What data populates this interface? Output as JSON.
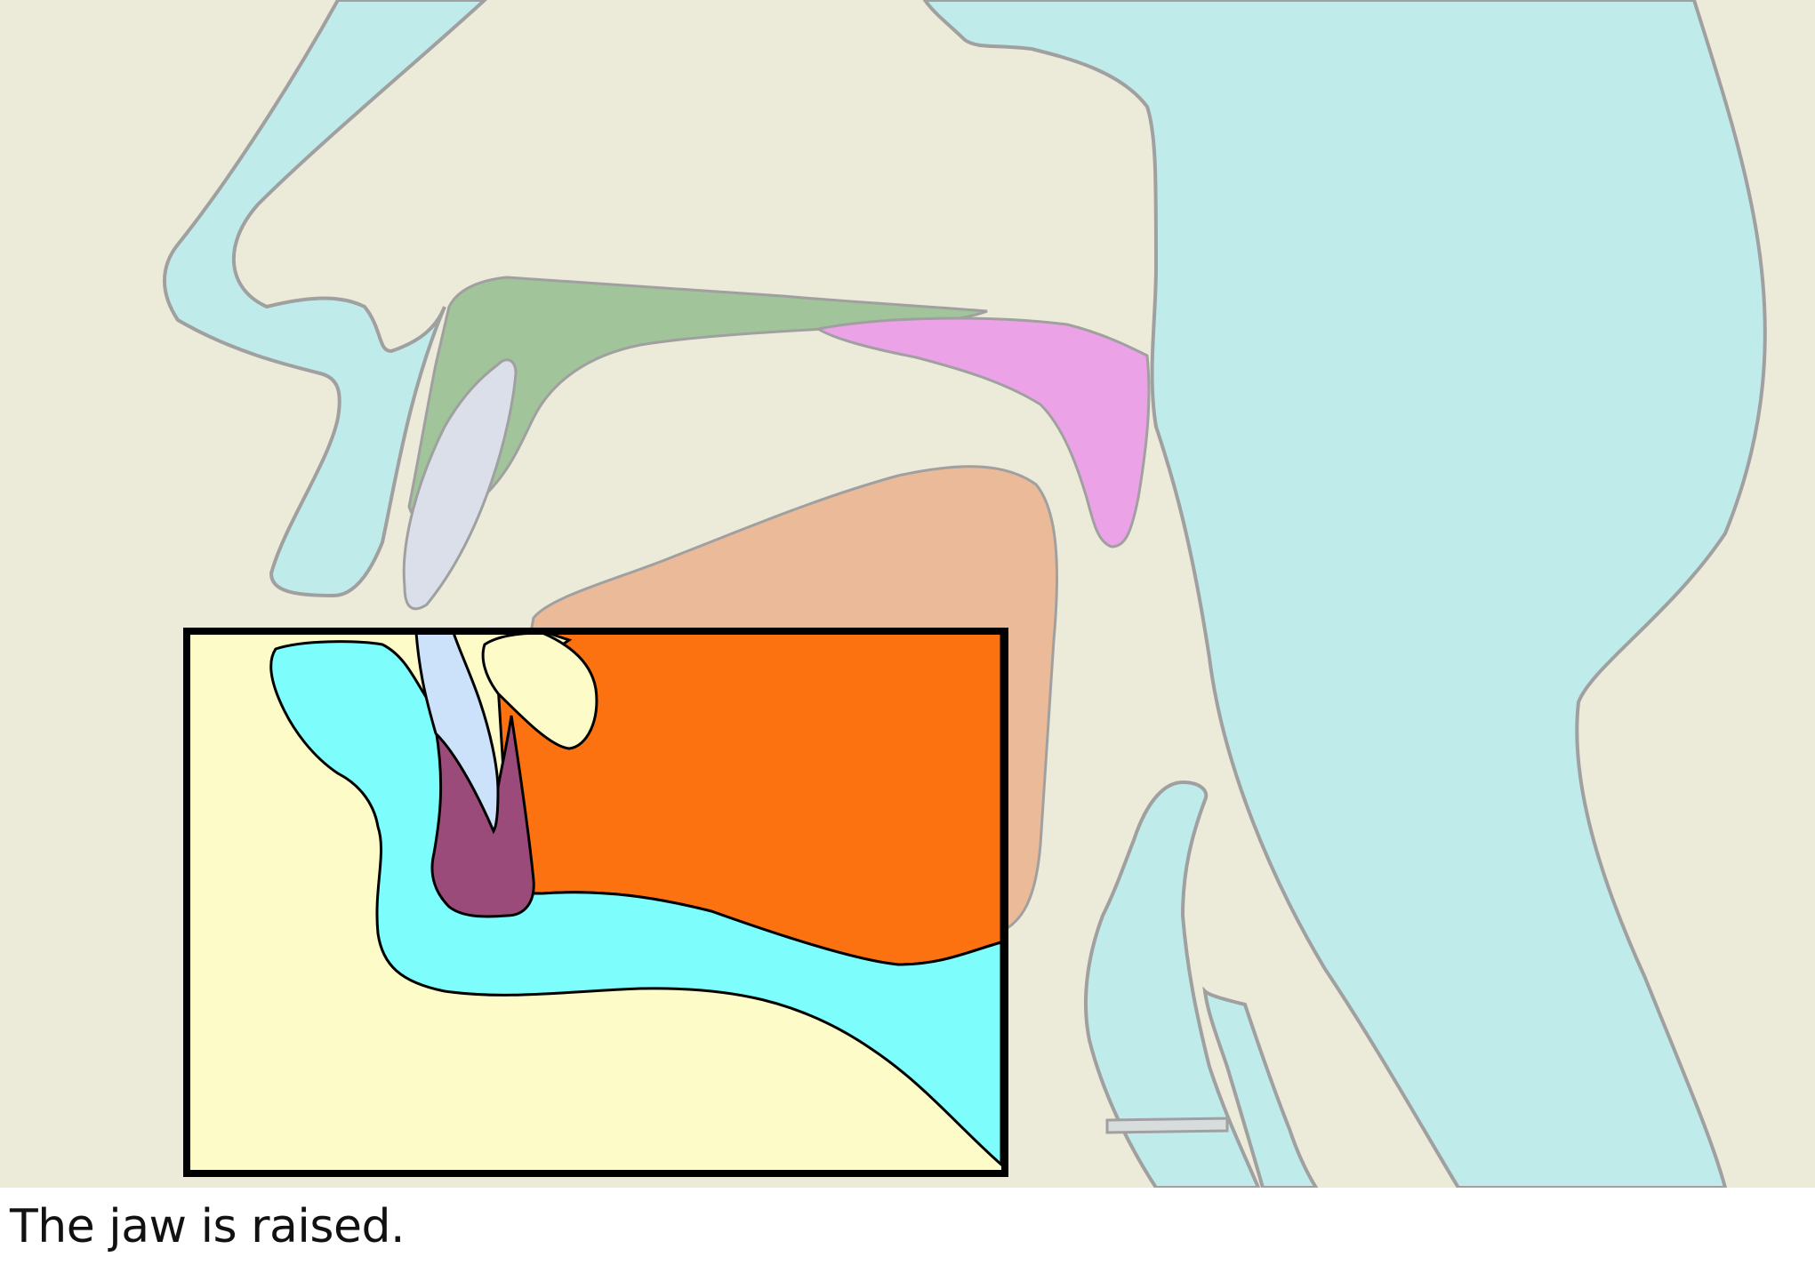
{
  "caption": "The jaw is raised.",
  "regions": {
    "background": "#ECEAD9",
    "head_outline": "#BFEBEB",
    "hard_palate": "#A1C49B",
    "soft_palate": "#EBA2E6",
    "tongue_faded": "#EBBB99",
    "upper_teeth": "#DADFEA",
    "highlight_box_fill": "#FDFCC9",
    "highlight_lower_lip_and_jaw": "#7DFDFC",
    "highlight_tongue": "#FD7210",
    "highlight_lower_tooth": "#CBE2FA",
    "highlight_gum": "#9A4B79",
    "outline_stroke": "#A0A0A0",
    "highlight_stroke": "#000000"
  }
}
